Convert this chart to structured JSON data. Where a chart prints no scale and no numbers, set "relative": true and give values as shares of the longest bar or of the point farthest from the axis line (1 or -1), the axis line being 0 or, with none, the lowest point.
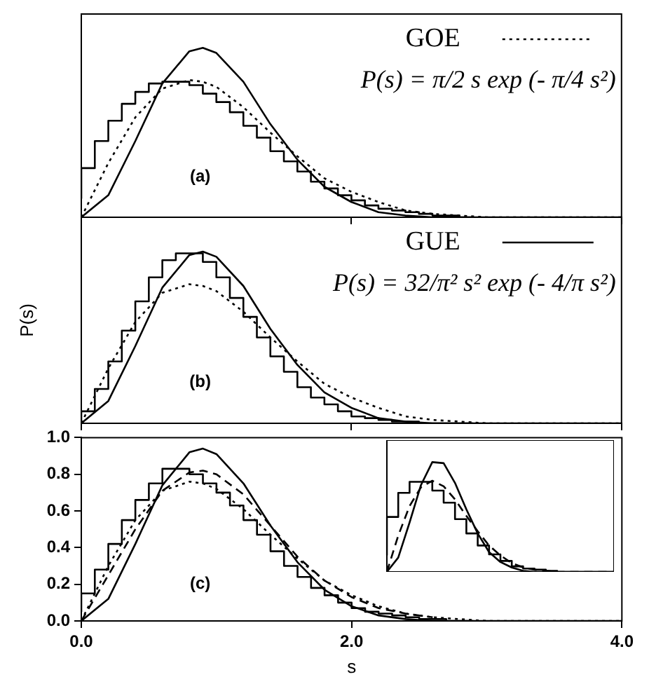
{
  "chart_data": [
    {
      "type": "line",
      "x": [
        0,
        0.2,
        0.4,
        0.6,
        0.8,
        0.9,
        1.0,
        1.2,
        1.4,
        1.6,
        1.8,
        2.0,
        2.2,
        2.4,
        2.6,
        2.8,
        3.0,
        4.0
      ],
      "xlim": [
        0,
        4
      ],
      "xticks": [
        0,
        2,
        4
      ],
      "relative": true,
      "tick_labels": false,
      "legend": "top right",
      "annotations": [
        "(a)",
        "P(s) = π/2 s exp (- π/4 s²)"
      ],
      "series": [
        {
          "type": "step",
          "color": "#000000",
          "x": [
            0,
            0.1,
            0.2,
            0.3,
            0.4,
            0.5,
            0.6,
            0.7,
            0.8,
            0.9,
            1.0,
            1.1,
            1.2,
            1.3,
            1.4,
            1.5,
            1.6,
            1.7,
            1.8,
            1.9,
            2.0,
            2.1,
            2.2,
            2.3,
            2.4,
            2.5,
            2.6,
            2.7,
            2.8,
            2.9
          ],
          "values": [
            0.11,
            0.29,
            0.45,
            0.57,
            0.67,
            0.74,
            0.79,
            0.8,
            0.8,
            0.78,
            0.73,
            0.68,
            0.62,
            0.54,
            0.47,
            0.39,
            0.33,
            0.27,
            0.21,
            0.17,
            0.13,
            0.1,
            0.07,
            0.05,
            0.04,
            0.03,
            0.02,
            0.01,
            0.01,
            0
          ]
        },
        {
          "name": "GOE",
          "color": "#000000",
          "line_style": "dotted",
          "values": [
            0,
            0.32,
            0.59,
            0.76,
            0.81,
            0.8,
            0.77,
            0.65,
            0.5,
            0.36,
            0.23,
            0.15,
            0.09,
            0.04,
            0.02,
            0.01,
            0,
            0
          ]
        },
        {
          "color": "#000000",
          "values": [
            0,
            0.13,
            0.45,
            0.79,
            0.98,
            1,
            0.97,
            0.8,
            0.55,
            0.34,
            0.18,
            0.09,
            0.03,
            0.01,
            0,
            0,
            0,
            0
          ]
        }
      ]
    },
    {
      "type": "line",
      "x": [
        0,
        0.2,
        0.4,
        0.6,
        0.8,
        0.9,
        1.0,
        1.2,
        1.4,
        1.6,
        1.8,
        2.0,
        2.2,
        2.4,
        2.6,
        2.8,
        3.0,
        4.0
      ],
      "xlim": [
        0,
        4
      ],
      "xticks": [
        0,
        2,
        4
      ],
      "relative": true,
      "tick_labels": false,
      "legend": "top right",
      "ylabel": "P(s)",
      "annotations": [
        "(b)",
        "P(s) = 32/π² s² exp (- 4/π s²)"
      ],
      "series": [
        {
          "type": "step",
          "color": "#000000",
          "x": [
            0,
            0.1,
            0.2,
            0.3,
            0.4,
            0.5,
            0.6,
            0.7,
            0.8,
            0.9,
            1.0,
            1.1,
            1.2,
            1.3,
            1.4,
            1.5,
            1.6,
            1.7,
            1.8,
            1.9,
            2.0,
            2.1,
            2.2,
            2.3,
            2.4,
            2.5,
            2.6,
            2.7,
            2.8,
            2.9
          ],
          "values": [
            0.01,
            0.07,
            0.2,
            0.36,
            0.54,
            0.71,
            0.85,
            0.95,
            0.99,
            0.99,
            0.94,
            0.85,
            0.73,
            0.62,
            0.5,
            0.39,
            0.3,
            0.21,
            0.15,
            0.11,
            0.07,
            0.04,
            0.03,
            0.02,
            0.01,
            0.01,
            0,
            0,
            0,
            0
          ]
        },
        {
          "color": "#000000",
          "line_style": "dotted",
          "values": [
            0,
            0.32,
            0.59,
            0.76,
            0.81,
            0.8,
            0.77,
            0.65,
            0.5,
            0.36,
            0.23,
            0.15,
            0.09,
            0.04,
            0.02,
            0.01,
            0,
            0
          ]
        },
        {
          "name": "GUE",
          "color": "#000000",
          "values": [
            0,
            0.13,
            0.45,
            0.79,
            0.98,
            1,
            0.97,
            0.8,
            0.55,
            0.34,
            0.18,
            0.09,
            0.03,
            0.01,
            0,
            0,
            0,
            0
          ]
        }
      ]
    },
    {
      "type": "line",
      "x": [
        0,
        0.2,
        0.4,
        0.6,
        0.8,
        0.9,
        1.0,
        1.2,
        1.4,
        1.6,
        1.8,
        2.0,
        2.2,
        2.4,
        2.6,
        2.8,
        3.0,
        4.0
      ],
      "xlim": [
        0,
        4
      ],
      "xticks": [
        {
          "value": 0,
          "label": "0.0"
        },
        {
          "value": 2,
          "label": "2.0"
        },
        {
          "value": 4,
          "label": "4.0"
        }
      ],
      "ylim": [
        0,
        1
      ],
      "yticks": [
        {
          "value": 0,
          "label": "0.0"
        },
        0.2,
        0.4,
        0.6,
        0.8,
        {
          "value": 1,
          "label": "1.0"
        }
      ],
      "xlabel": "s",
      "annotations": [
        "(c)"
      ],
      "series": [
        {
          "type": "step",
          "color": "#000000",
          "x": [
            0,
            0.1,
            0.2,
            0.3,
            0.4,
            0.5,
            0.6,
            0.7,
            0.8,
            0.9,
            1.0,
            1.1,
            1.2,
            1.3,
            1.4,
            1.5,
            1.6,
            1.7,
            1.8,
            1.9,
            2.0,
            2.1,
            2.2,
            2.3,
            2.4,
            2.5,
            2.6,
            2.7,
            2.8,
            2.9
          ],
          "values": [
            0.05,
            0.15,
            0.28,
            0.42,
            0.55,
            0.66,
            0.75,
            0.83,
            0.83,
            0.8,
            0.75,
            0.7,
            0.63,
            0.55,
            0.47,
            0.38,
            0.3,
            0.24,
            0.18,
            0.14,
            0.1,
            0.07,
            0.05,
            0.04,
            0.03,
            0.02,
            0.01,
            0.01,
            0,
            0
          ]
        },
        {
          "color": "#000000",
          "line_style": "dotted",
          "values": [
            0,
            0.3,
            0.55,
            0.71,
            0.76,
            0.75,
            0.72,
            0.61,
            0.47,
            0.34,
            0.22,
            0.14,
            0.08,
            0.04,
            0.02,
            0.01,
            0,
            0
          ]
        },
        {
          "color": "#000000",
          "line_style": "dashed",
          "x": [
            0,
            0.2,
            0.4,
            0.6,
            0.8,
            0.9,
            1.0,
            1.2,
            1.4,
            1.6,
            1.8,
            2.0,
            2.2,
            2.4,
            2.6
          ],
          "values": [
            0,
            0.25,
            0.5,
            0.71,
            0.81,
            0.82,
            0.8,
            0.69,
            0.52,
            0.35,
            0.22,
            0.13,
            0.07,
            0.04,
            0.02
          ]
        },
        {
          "color": "#000000",
          "values": [
            0,
            0.12,
            0.42,
            0.74,
            0.92,
            0.94,
            0.91,
            0.75,
            0.52,
            0.32,
            0.17,
            0.08,
            0.03,
            0.01,
            0,
            0,
            0,
            0
          ]
        }
      ]
    },
    {
      "type": "line",
      "categories": [
        null,
        null,
        null,
        null,
        null,
        null,
        null,
        null,
        null,
        null,
        null,
        null,
        null,
        null,
        null,
        null,
        null,
        null,
        null,
        null,
        null
      ],
      "relative": true,
      "tick_labels": false,
      "series": [
        {
          "type": "step",
          "color": "#000000",
          "values": [
            0.15,
            0.5,
            0.72,
            0.82,
            0.82,
            0.74,
            0.63,
            0.48,
            0.35,
            0.24,
            0.16,
            0.1,
            0.05,
            0.03,
            0.02,
            0.01,
            0,
            0,
            0,
            0,
            0
          ]
        },
        {
          "color": "#000000",
          "line_style": "dashed",
          "values": [
            0,
            0.33,
            0.6,
            0.77,
            0.83,
            0.78,
            0.66,
            0.51,
            0.37,
            0.24,
            0.15,
            0.08,
            0.04,
            0.02,
            0.01,
            0,
            0,
            0,
            0,
            0,
            0
          ]
        },
        {
          "color": "#000000",
          "values": [
            0,
            0.13,
            0.45,
            0.79,
            1,
            0.99,
            0.81,
            0.57,
            0.35,
            0.18,
            0.09,
            0.04,
            0.01,
            0,
            0,
            0,
            0,
            0,
            0,
            0,
            0
          ]
        }
      ]
    }
  ]
}
